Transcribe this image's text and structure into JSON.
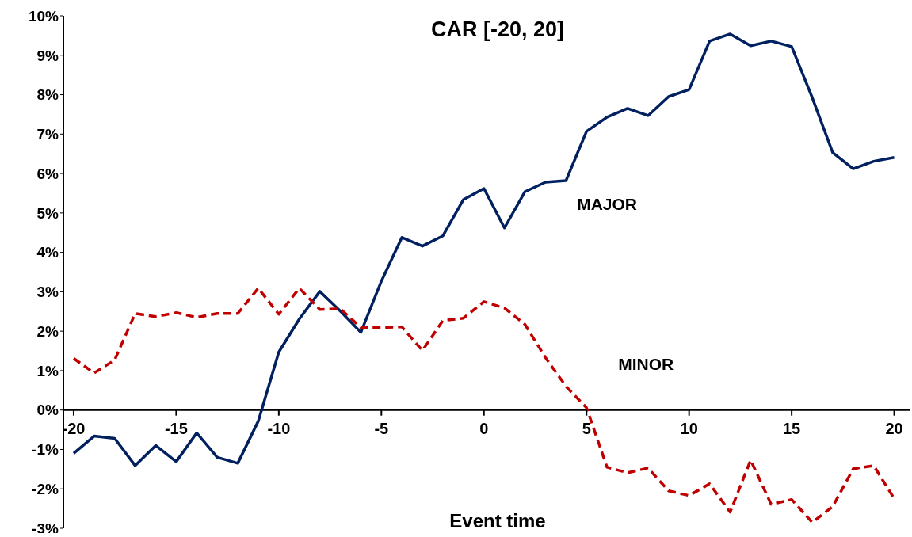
{
  "chart_data": {
    "type": "line",
    "title": "CAR [-20, 20]",
    "xlabel": "Event time",
    "x": [
      -20,
      -19,
      -18,
      -17,
      -16,
      -15,
      -14,
      -13,
      -12,
      -11,
      -10,
      -9,
      -8,
      -7,
      -6,
      -5,
      -4,
      -3,
      -2,
      -1,
      0,
      1,
      2,
      3,
      4,
      5,
      6,
      7,
      8,
      9,
      10,
      11,
      12,
      13,
      14,
      15,
      16,
      17,
      18,
      19,
      20
    ],
    "series": [
      {
        "name": "MAJOR",
        "color": "#002060",
        "line_style": "solid",
        "values": [
          -1.1,
          -0.66,
          -0.72,
          -1.41,
          -0.9,
          -1.31,
          -0.58,
          -1.2,
          -1.35,
          -0.28,
          1.47,
          2.31,
          3.01,
          2.51,
          1.97,
          3.27,
          4.38,
          4.16,
          4.42,
          5.34,
          5.62,
          4.62,
          5.54,
          5.78,
          5.82,
          7.07,
          7.43,
          7.65,
          7.47,
          7.95,
          8.13,
          9.36,
          9.54,
          9.24,
          9.36,
          9.22,
          7.93,
          6.53,
          6.12,
          6.31,
          6.41
        ]
      },
      {
        "name": "MINOR",
        "color": "#c00000",
        "line_style": "dashed",
        "values": [
          1.31,
          0.94,
          1.27,
          2.45,
          2.37,
          2.47,
          2.35,
          2.45,
          2.45,
          3.09,
          2.43,
          3.09,
          2.55,
          2.57,
          2.09,
          2.09,
          2.11,
          1.51,
          2.27,
          2.33,
          2.75,
          2.59,
          2.17,
          1.33,
          0.6,
          0.06,
          -1.45,
          -1.59,
          -1.47,
          -2.05,
          -2.17,
          -1.87,
          -2.59,
          -1.27,
          -2.39,
          -2.27,
          -2.85,
          -2.45,
          -1.49,
          -1.41,
          -2.25
        ]
      }
    ],
    "xlim": [
      -20.5,
      20.75
    ],
    "xticks": [
      -20,
      -15,
      -10,
      -5,
      0,
      5,
      10,
      15,
      20
    ],
    "ylim": [
      -3,
      10
    ],
    "yticks": [
      {
        "value": -3,
        "label": "-3%"
      },
      {
        "value": -2,
        "label": "-2%"
      },
      {
        "value": -1,
        "label": "-1%"
      },
      {
        "value": 0,
        "label": "0%"
      },
      {
        "value": 1,
        "label": "1%"
      },
      {
        "value": 2,
        "label": "2%"
      },
      {
        "value": 3,
        "label": "3%"
      },
      {
        "value": 4,
        "label": "4%"
      },
      {
        "value": 5,
        "label": "5%"
      },
      {
        "value": 6,
        "label": "6%"
      },
      {
        "value": 7,
        "label": "7%"
      },
      {
        "value": 8,
        "label": "8%"
      },
      {
        "value": 9,
        "label": "9%"
      },
      {
        "value": 10,
        "label": "10%"
      }
    ],
    "marker": "none"
  }
}
